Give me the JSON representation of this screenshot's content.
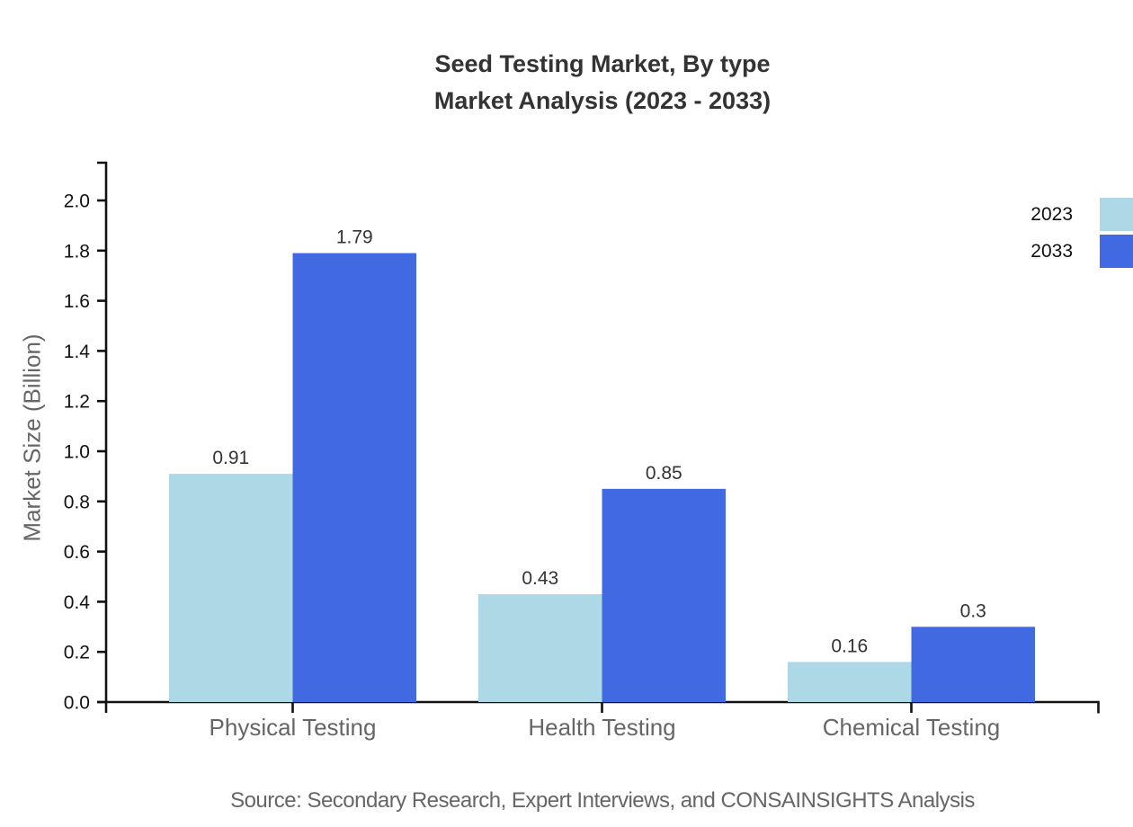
{
  "title": {
    "line1": "Seed Testing Market, By type",
    "line2": "Market Analysis (2023 - 2033)"
  },
  "source": "Source: Secondary Research, Expert Interviews, and CONSAINSIGHTS Analysis",
  "chart_data": {
    "type": "bar",
    "title": "Seed Testing Market, By type Market Analysis (2023 - 2033)",
    "categories": [
      "Physical Testing",
      "Health Testing",
      "Chemical Testing"
    ],
    "series": [
      {
        "name": "2023",
        "color": "#ADD8E6",
        "values": [
          0.91,
          0.43,
          0.16
        ]
      },
      {
        "name": "2033",
        "color": "#4169E1",
        "values": [
          1.79,
          0.85,
          0.3
        ]
      }
    ],
    "xlabel": "",
    "ylabel": "Market Size (Billion)",
    "ylim": [
      0.0,
      2.0
    ],
    "ytick_step": 0.2,
    "yticks": [
      "0.0",
      "0.2",
      "0.4",
      "0.6",
      "0.8",
      "1.0",
      "1.2",
      "1.4",
      "1.6",
      "1.8",
      "2.0"
    ],
    "grid": false,
    "legend_position": "top-right",
    "value_labels_shown": true
  },
  "colors": {
    "axis": "#111111",
    "value_label": "#333333",
    "category_label": "#666666",
    "tick_label": "#111111"
  }
}
